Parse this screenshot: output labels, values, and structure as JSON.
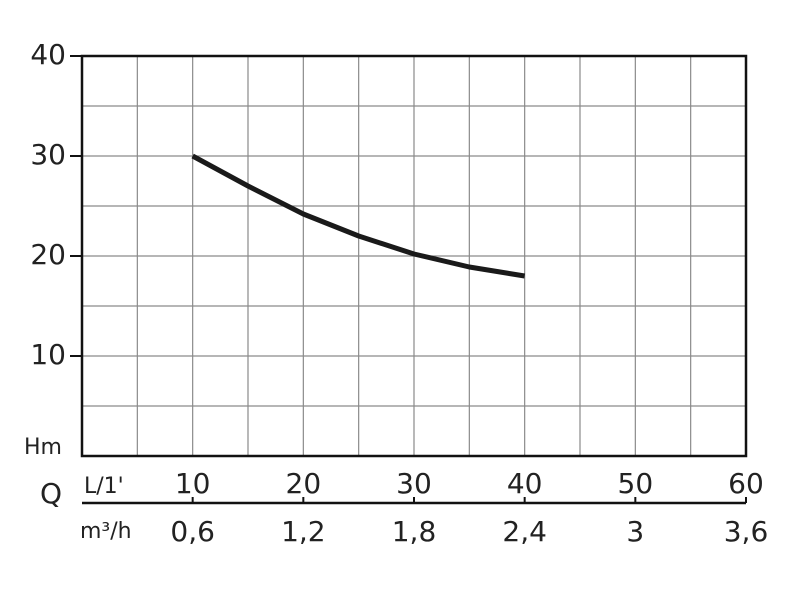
{
  "chart_data": {
    "type": "line",
    "y_label": "Hm",
    "x_label": "Q",
    "x_unit": "L/1'",
    "x2_unit": "m³/h",
    "x": [
      10,
      15,
      20,
      25,
      30,
      35,
      40
    ],
    "series": [
      {
        "color": "#1a1a1a",
        "values": [
          30,
          27,
          24.2,
          22,
          20.2,
          18.9,
          18
        ]
      }
    ],
    "xlim": [
      0,
      60
    ],
    "xticks": [
      10,
      20,
      30,
      40,
      50,
      60
    ],
    "xminor": [
      5,
      15,
      25,
      35,
      45,
      55
    ],
    "x2lim": [
      0,
      3.6
    ],
    "x2ticks": [
      {
        "value": 0.6,
        "label": "0,6"
      },
      {
        "value": 1.2,
        "label": "1,2"
      },
      {
        "value": 1.8,
        "label": "1,8"
      },
      {
        "value": 2.4,
        "label": "2,4"
      },
      3,
      {
        "value": 3.6,
        "label": "3,6"
      }
    ],
    "ylim": [
      0,
      40
    ],
    "yticks": [
      10,
      20,
      30,
      40
    ],
    "yminor": [
      5,
      15,
      25,
      35
    ],
    "grid": true
  }
}
